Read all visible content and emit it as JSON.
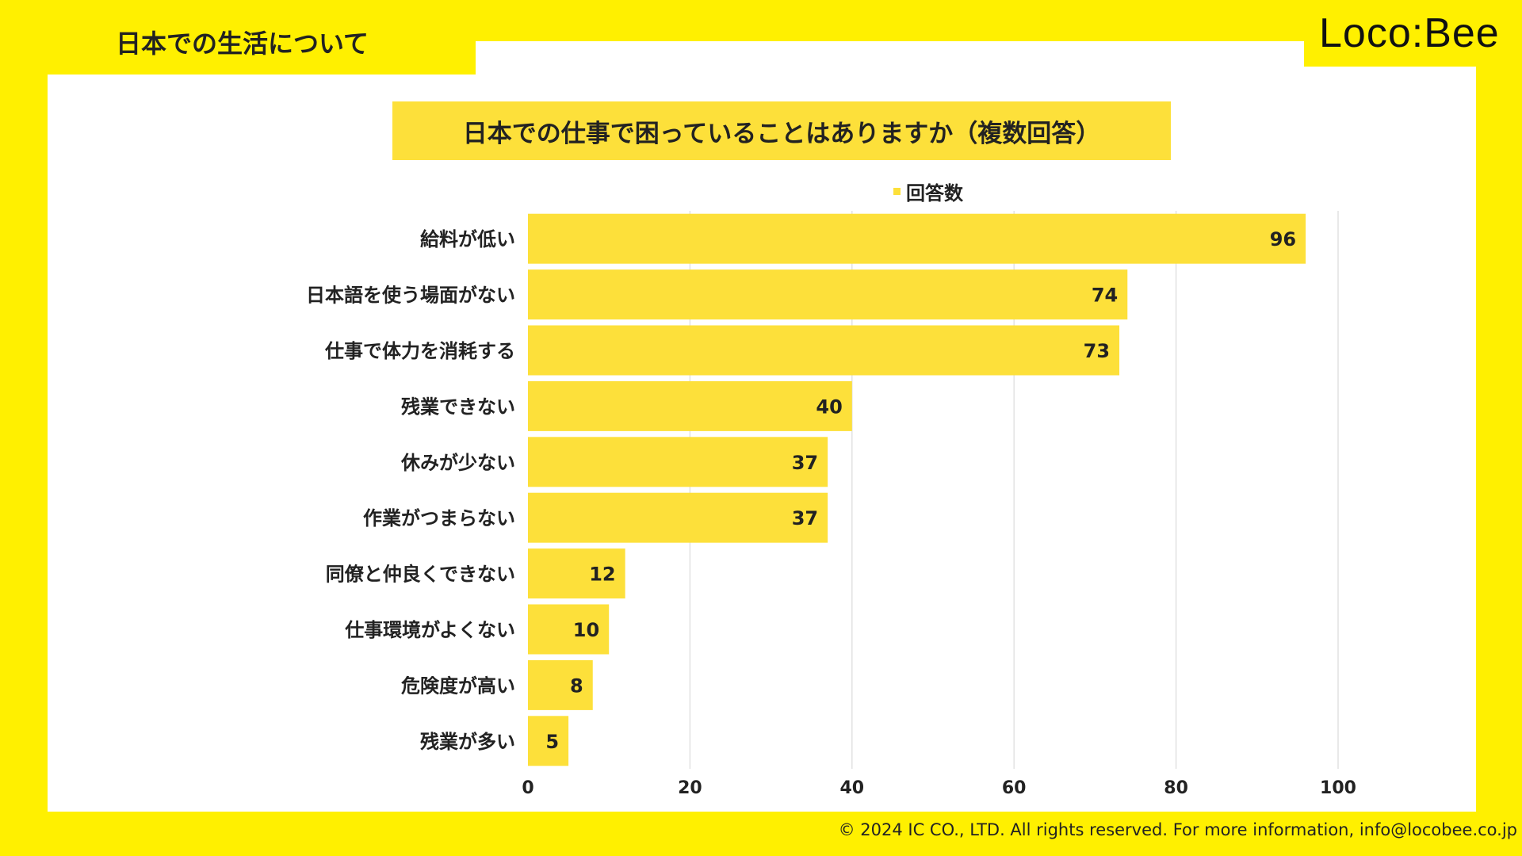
{
  "header": {
    "section_label": "日本での生活について",
    "logo_text": "Loco:Bee"
  },
  "chart_data": {
    "type": "bar",
    "orientation": "horizontal",
    "title": "日本での仕事で困っていることはありますか（複数回答）",
    "legend": "回答数",
    "categories": [
      "給料が低い",
      "日本語を使う場面がない",
      "仕事で体力を消耗する",
      "残業できない",
      "休みが少ない",
      "作業がつまらない",
      "同僚と仲良くできない",
      "仕事環境がよくない",
      "危険度が高い",
      "残業が多い"
    ],
    "values": [
      96,
      74,
      73,
      40,
      37,
      37,
      12,
      10,
      8,
      5
    ],
    "xlim": [
      0,
      100
    ],
    "xticks": [
      0,
      20,
      40,
      60,
      80,
      100
    ],
    "bar_color": "#FDE03A",
    "grid": true
  },
  "footer": {
    "text": "© 2024 IC CO., LTD. All rights reserved. For more information, info@locobee.co.jp"
  },
  "colors": {
    "background": "#FFF000",
    "panel": "#FFFFFF",
    "accent": "#FDE03A"
  }
}
